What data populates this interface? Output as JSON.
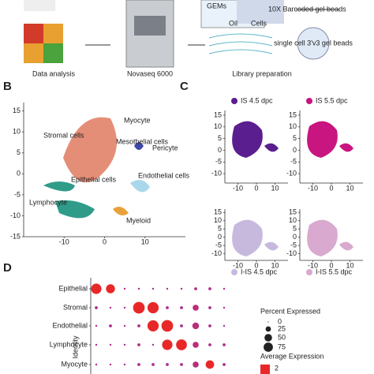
{
  "workflow": {
    "steps": [
      "Data analysis",
      "Novaseq 6000",
      "Library preparation"
    ],
    "device_labels": [
      "GEMs",
      "Oil",
      "Cells",
      "10X Barcoded gel beads",
      "single cell 3'v3 gel beads"
    ]
  },
  "panels": [
    "B",
    "C",
    "D"
  ],
  "panel_b": {
    "clusters": [
      "Stromal cells",
      "Myocyte",
      "Mesothelial cells",
      "Pericyte",
      "Endothelial cells",
      "Epithelial cells",
      "Lymphocyte",
      "Myeloid"
    ],
    "xlim": [
      -20,
      20
    ],
    "ylim": [
      -15,
      17
    ],
    "xticks": [
      -10,
      0,
      10
    ],
    "yticks": [
      15,
      10,
      5,
      0,
      -5,
      -10,
      -15
    ]
  },
  "panel_c": {
    "titles": [
      "IS 4.5 dpc",
      "IS 5.5 dpc",
      "I-IS 4.5 dpc",
      "I-IS 5.5 dpc"
    ],
    "colors": [
      "#5b1e8f",
      "#c8157f",
      "#c7b9de",
      "#d9a9cf"
    ],
    "xlim": [
      -17,
      17
    ],
    "ylim": [
      -14,
      17
    ],
    "xticks": [
      -10,
      0,
      10
    ],
    "yticks": [
      15,
      10,
      5,
      0,
      -5,
      -10
    ]
  },
  "panel_d": {
    "y_label": "Identity",
    "rows": [
      "Epithelial",
      "Stromal",
      "Endothelial",
      "Lymphocyte",
      "Myocyte"
    ],
    "percent": [
      [
        60,
        45,
        2,
        2,
        2,
        2,
        2,
        5,
        5,
        2
      ],
      [
        5,
        2,
        2,
        75,
        70,
        5,
        5,
        20,
        5,
        2
      ],
      [
        2,
        5,
        2,
        5,
        70,
        75,
        5,
        25,
        5,
        2
      ],
      [
        2,
        2,
        2,
        5,
        2,
        60,
        65,
        20,
        5,
        5
      ],
      [
        2,
        2,
        2,
        5,
        5,
        5,
        5,
        20,
        40,
        5
      ]
    ],
    "expression": [
      [
        2,
        2,
        0.5,
        0.5,
        0.5,
        0.5,
        0.5,
        0.5,
        0.5,
        0.5
      ],
      [
        0.5,
        0.5,
        0.5,
        2,
        2,
        0.5,
        0.5,
        0.8,
        0.5,
        0.5
      ],
      [
        0.5,
        0.5,
        0.5,
        0.5,
        2,
        2,
        0.5,
        0.8,
        0.5,
        0.5
      ],
      [
        0.5,
        0.5,
        0.5,
        0.5,
        0.5,
        2,
        2,
        0.8,
        0.5,
        0.5
      ],
      [
        0.5,
        0.5,
        0.5,
        0.5,
        0.5,
        0.5,
        0.5,
        0.8,
        2,
        0.5
      ]
    ],
    "size_title": "Percent Expressed",
    "size_ticks": [
      0,
      25,
      50,
      75
    ],
    "color_title": "Average Expression",
    "color_ticks": [
      2
    ],
    "color_lim": [
      0,
      2
    ]
  }
}
